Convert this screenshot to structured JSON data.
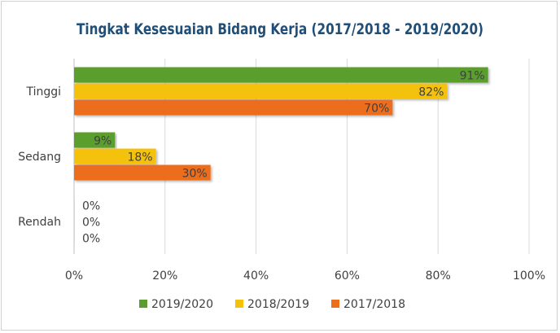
{
  "chart_data": {
    "type": "bar",
    "orientation": "horizontal",
    "title": "Tingkat Kesesuaian Bidang Kerja (2017/2018  - 2019/2020)",
    "categories": [
      "Tinggi",
      "Sedang",
      "Rendah"
    ],
    "series": [
      {
        "name": "2019/2020",
        "values": [
          91,
          9,
          0
        ],
        "labels": [
          "91%",
          "9%",
          "0%"
        ],
        "color": "#5a9e2f"
      },
      {
        "name": "2018/2019",
        "values": [
          82,
          18,
          0
        ],
        "labels": [
          "82%",
          "18%",
          "0%"
        ],
        "color": "#f4c20d"
      },
      {
        "name": "2017/2018",
        "values": [
          70,
          30,
          0
        ],
        "labels": [
          "70%",
          "30%",
          "0%"
        ],
        "color": "#ec6d1b"
      }
    ],
    "xlim": [
      0,
      100
    ],
    "xticks": [
      0,
      20,
      40,
      60,
      80,
      100
    ],
    "xtick_labels": [
      "0%",
      "20%",
      "40%",
      "60%",
      "80%",
      "100%"
    ],
    "grid": "vertical",
    "legend_position": "bottom",
    "title_color": "#1f4e79"
  }
}
